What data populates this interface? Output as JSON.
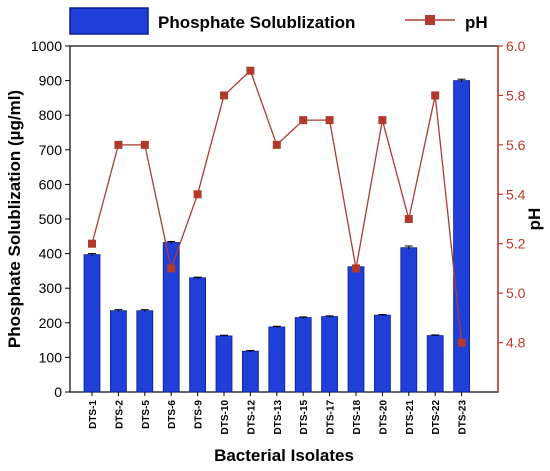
{
  "chart_data": {
    "type": "bar+line",
    "categories": [
      "DTS-1",
      "DTS-2",
      "DTS-5",
      "DTS-6",
      "DTS-9",
      "DTS-10",
      "DTS-12",
      "DTS-13",
      "DTS-15",
      "DTS-17",
      "DTS-18",
      "DTS-20",
      "DTS-21",
      "DTS-22",
      "DTS-23"
    ],
    "series": [
      {
        "name": "Phosphate Solublization",
        "type": "bar",
        "axis": "left",
        "color": "#1f3fd8",
        "values": [
          397,
          235,
          235,
          432,
          330,
          162,
          118,
          188,
          215,
          218,
          362,
          222,
          417,
          163,
          900
        ],
        "errors": [
          3,
          3,
          3,
          3,
          2,
          2,
          2,
          2,
          2,
          2,
          4,
          2,
          5,
          2,
          4
        ]
      },
      {
        "name": "pH",
        "type": "line",
        "axis": "right",
        "color": "#b03a2e",
        "marker": "square",
        "values": [
          5.2,
          5.6,
          5.6,
          5.1,
          5.4,
          5.8,
          5.9,
          5.6,
          5.7,
          5.7,
          5.1,
          5.7,
          5.3,
          5.8,
          4.8
        ]
      }
    ],
    "xlabel": "Bacterial Isolates",
    "ylabel_left": "Phosphate Solublization (µg/ml)",
    "ylabel_right": "pH",
    "ylim_left": [
      0,
      1000
    ],
    "yticks_left": [
      0,
      100,
      200,
      300,
      400,
      500,
      600,
      700,
      800,
      900,
      1000
    ],
    "ylim_right": [
      4.6,
      6.0
    ],
    "yticks_right": [
      4.8,
      5.0,
      5.2,
      5.4,
      5.6,
      5.8,
      6.0
    ],
    "left_axis_color": "#000000",
    "right_axis_color": "#c0392b",
    "legend_position": "top",
    "grid": false
  }
}
